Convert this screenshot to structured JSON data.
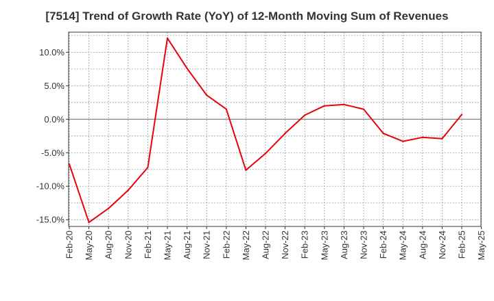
{
  "chart_data": {
    "type": "line",
    "title": "[7514]  Trend of Growth Rate (YoY) of 12-Month Moving Sum of Revenues",
    "xlabel": "",
    "ylabel": "",
    "x_ticks": [
      "Feb-20",
      "May-20",
      "Aug-20",
      "Nov-20",
      "Feb-21",
      "May-21",
      "Aug-21",
      "Nov-21",
      "Feb-22",
      "May-22",
      "Aug-22",
      "Nov-22",
      "Feb-23",
      "May-23",
      "Aug-23",
      "Nov-23",
      "Feb-24",
      "May-24",
      "Aug-24",
      "Nov-24",
      "Feb-25",
      "May-25"
    ],
    "y_ticks": [
      10.0,
      5.0,
      0.0,
      -5.0,
      -10.0,
      -15.0
    ],
    "y_tick_labels": [
      "10.0%",
      "5.0%",
      "0.0%",
      "-5.0%",
      "-10.0%",
      "-15.0%"
    ],
    "ylim": [
      -16,
      13
    ],
    "grid": true,
    "line_color": "#e8000b",
    "series": [
      {
        "x": [
          "Feb-20",
          "May-20",
          "Aug-20",
          "Nov-20",
          "Feb-21",
          "May-21",
          "Aug-21",
          "Nov-21",
          "Feb-22",
          "May-22",
          "Aug-22",
          "Nov-22",
          "Feb-23",
          "May-23",
          "Aug-23",
          "Nov-23",
          "Feb-24",
          "May-24",
          "Aug-24",
          "Nov-24",
          "Feb-25"
        ],
        "values": [
          -6.7,
          -15.4,
          -13.3,
          -10.6,
          -7.2,
          12.1,
          7.6,
          3.6,
          1.5,
          -7.6,
          -5.1,
          -2.1,
          0.6,
          2.0,
          2.2,
          1.5,
          -2.1,
          -3.3,
          -2.7,
          -2.9,
          0.7
        ]
      }
    ]
  }
}
